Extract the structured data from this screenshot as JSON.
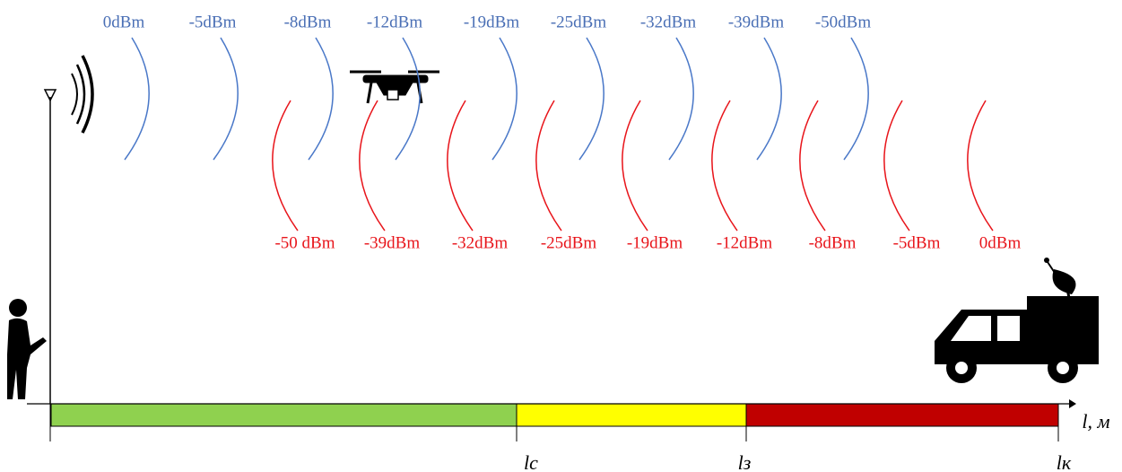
{
  "blue_labels": [
    "0dBm",
    "-5dBm",
    "-8dBm",
    "-12dBm",
    "-19dBm",
    "-25dBm",
    "-32dBm",
    "-39dBm",
    "-50dBm"
  ],
  "red_labels": [
    "-50 dBm",
    "-39dBm",
    "-32dBm",
    "-25dBm",
    "-19dBm",
    "-12dBm",
    "-8dBm",
    "-5dBm",
    "0dBm"
  ],
  "axis": {
    "label": "l, м",
    "marks": [
      "lc",
      "lз",
      "lк"
    ]
  }
}
